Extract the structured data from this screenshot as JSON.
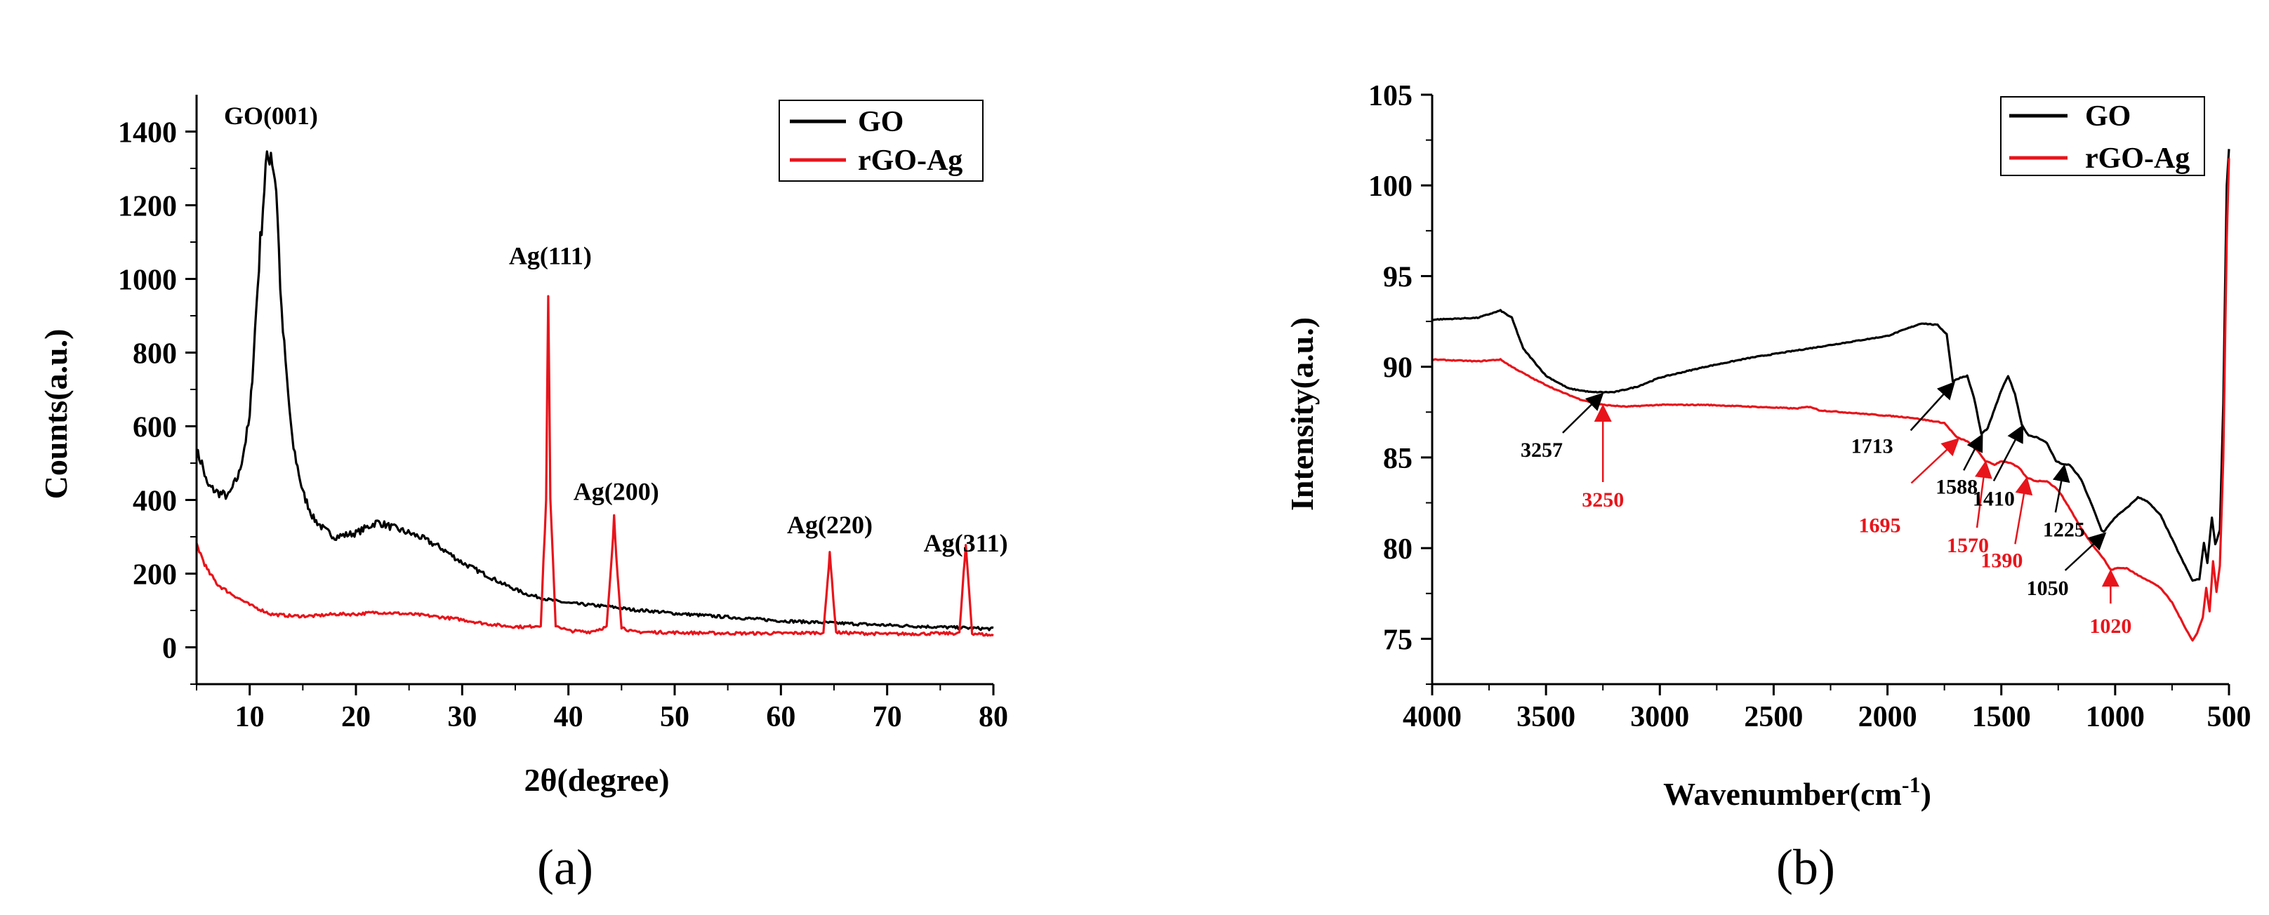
{
  "chart_data": [
    {
      "type": "line",
      "xlabel": "2θ(degree)",
      "ylabel": "Counts(a.u.)",
      "xlim": [
        5,
        80
      ],
      "ylim": [
        -100,
        1500
      ],
      "xticks": [
        10,
        20,
        30,
        40,
        50,
        60,
        70,
        80
      ],
      "yticks": [
        0,
        200,
        400,
        600,
        800,
        1000,
        1200,
        1400
      ],
      "caption": "(a)",
      "legend_position": "top-right",
      "series": [
        {
          "name": "GO",
          "color": "#000000",
          "points": [
            [
              5,
              530
            ],
            [
              5.5,
              500
            ],
            [
              6,
              440
            ],
            [
              7,
              420
            ],
            [
              8,
              410
            ],
            [
              9,
              470
            ],
            [
              10,
              620
            ],
            [
              11,
              1100
            ],
            [
              11.5,
              1300
            ],
            [
              12,
              1350
            ],
            [
              12.5,
              1250
            ],
            [
              13,
              900
            ],
            [
              14,
              560
            ],
            [
              15,
              420
            ],
            [
              16,
              350
            ],
            [
              17,
              320
            ],
            [
              18,
              300
            ],
            [
              20,
              310
            ],
            [
              22,
              340
            ],
            [
              24,
              320
            ],
            [
              26,
              300
            ],
            [
              28,
              270
            ],
            [
              30,
              230
            ],
            [
              32,
              200
            ],
            [
              34,
              170
            ],
            [
              36,
              145
            ],
            [
              38,
              130
            ],
            [
              40,
              120
            ],
            [
              42,
              115
            ],
            [
              44,
              110
            ],
            [
              46,
              102
            ],
            [
              48,
              98
            ],
            [
              50,
              92
            ],
            [
              55,
              82
            ],
            [
              60,
              72
            ],
            [
              65,
              66
            ],
            [
              70,
              60
            ],
            [
              75,
              55
            ],
            [
              80,
              50
            ]
          ]
        },
        {
          "name": "rGO-Ag",
          "color": "#e8141b",
          "points": [
            [
              5,
              280
            ],
            [
              6,
              210
            ],
            [
              7,
              170
            ],
            [
              8,
              150
            ],
            [
              10,
              115
            ],
            [
              12,
              90
            ],
            [
              14,
              85
            ],
            [
              16,
              85
            ],
            [
              18,
              90
            ],
            [
              20,
              90
            ],
            [
              22,
              95
            ],
            [
              24,
              92
            ],
            [
              26,
              88
            ],
            [
              28,
              82
            ],
            [
              30,
              75
            ],
            [
              32,
              65
            ],
            [
              34,
              58
            ],
            [
              36,
              55
            ],
            [
              37.4,
              60
            ],
            [
              37.9,
              400
            ],
            [
              38.1,
              975
            ],
            [
              38.3,
              400
            ],
            [
              38.8,
              60
            ],
            [
              40,
              45
            ],
            [
              42,
              42
            ],
            [
              43.6,
              55
            ],
            [
              44.1,
              250
            ],
            [
              44.3,
              350
            ],
            [
              44.5,
              250
            ],
            [
              45,
              55
            ],
            [
              46,
              42
            ],
            [
              50,
              40
            ],
            [
              55,
              38
            ],
            [
              60,
              38
            ],
            [
              64,
              40
            ],
            [
              64.4,
              180
            ],
            [
              64.6,
              260
            ],
            [
              64.8,
              180
            ],
            [
              65.2,
              40
            ],
            [
              70,
              36
            ],
            [
              76.8,
              38
            ],
            [
              77.2,
              200
            ],
            [
              77.4,
              270
            ],
            [
              77.6,
              200
            ],
            [
              78,
              38
            ],
            [
              80,
              32
            ]
          ]
        }
      ],
      "annotations": [
        {
          "text": "GO(001)",
          "x": 12,
          "y": 1420
        },
        {
          "text": "Ag(111)",
          "x": 38.3,
          "y": 1040
        },
        {
          "text": "Ag(200)",
          "x": 44.5,
          "y": 400
        },
        {
          "text": "Ag(220)",
          "x": 64.6,
          "y": 310
        },
        {
          "text": "Ag(311)",
          "x": 77.4,
          "y": 260
        }
      ]
    },
    {
      "type": "line",
      "xlabel_main": "Wavenumber(cm",
      "xlabel_sup": "-1",
      "xlabel_end": ")",
      "ylabel": "Intensity(a.u.)",
      "xlim": [
        4000,
        500
      ],
      "ylim": [
        72.5,
        105
      ],
      "xticks": [
        4000,
        3500,
        3000,
        2500,
        2000,
        1500,
        1000,
        500
      ],
      "yticks": [
        75,
        80,
        85,
        90,
        95,
        100,
        105
      ],
      "caption": "(b)",
      "legend_position": "top-right",
      "series": [
        {
          "name": "GO",
          "color": "#000000",
          "points": [
            [
              4000,
              92.6
            ],
            [
              3800,
              92.7
            ],
            [
              3700,
              93.1
            ],
            [
              3650,
              92.7
            ],
            [
              3600,
              91.0
            ],
            [
              3500,
              89.5
            ],
            [
              3400,
              88.8
            ],
            [
              3300,
              88.6
            ],
            [
              3200,
              88.6
            ],
            [
              3100,
              88.9
            ],
            [
              3000,
              89.4
            ],
            [
              2900,
              89.7
            ],
            [
              2800,
              90.0
            ],
            [
              2600,
              90.5
            ],
            [
              2400,
              90.9
            ],
            [
              2200,
              91.3
            ],
            [
              2000,
              91.7
            ],
            [
              1850,
              92.4
            ],
            [
              1780,
              92.3
            ],
            [
              1740,
              91.8
            ],
            [
              1713,
              89.2
            ],
            [
              1680,
              89.4
            ],
            [
              1650,
              89.5
            ],
            [
              1620,
              88.3
            ],
            [
              1588,
              86.3
            ],
            [
              1560,
              86.6
            ],
            [
              1500,
              88.7
            ],
            [
              1470,
              89.5
            ],
            [
              1440,
              88.5
            ],
            [
              1410,
              86.8
            ],
            [
              1380,
              86.2
            ],
            [
              1340,
              86.1
            ],
            [
              1300,
              85.8
            ],
            [
              1260,
              84.8
            ],
            [
              1225,
              84.6
            ],
            [
              1200,
              84.6
            ],
            [
              1150,
              83.8
            ],
            [
              1100,
              82.3
            ],
            [
              1060,
              81.0
            ],
            [
              1050,
              80.9
            ],
            [
              1000,
              81.7
            ],
            [
              950,
              82.2
            ],
            [
              900,
              82.8
            ],
            [
              860,
              82.6
            ],
            [
              800,
              81.8
            ],
            [
              750,
              80.5
            ],
            [
              700,
              79.2
            ],
            [
              660,
              78.2
            ],
            [
              630,
              78.3
            ],
            [
              610,
              80.3
            ],
            [
              595,
              79.2
            ],
            [
              575,
              81.7
            ],
            [
              560,
              80.2
            ],
            [
              540,
              81.0
            ],
            [
              525,
              88
            ],
            [
              510,
              100
            ],
            [
              500,
              102
            ]
          ]
        },
        {
          "name": "rGO-Ag",
          "color": "#e8141b",
          "points": [
            [
              4000,
              90.4
            ],
            [
              3800,
              90.3
            ],
            [
              3700,
              90.4
            ],
            [
              3650,
              90.0
            ],
            [
              3550,
              89.3
            ],
            [
              3450,
              88.7
            ],
            [
              3350,
              88.2
            ],
            [
              3250,
              87.9
            ],
            [
              3150,
              87.8
            ],
            [
              3000,
              87.9
            ],
            [
              2800,
              87.9
            ],
            [
              2600,
              87.8
            ],
            [
              2400,
              87.7
            ],
            [
              2340,
              87.8
            ],
            [
              2300,
              87.6
            ],
            [
              2100,
              87.4
            ],
            [
              1900,
              87.2
            ],
            [
              1750,
              86.9
            ],
            [
              1695,
              86.1
            ],
            [
              1650,
              85.9
            ],
            [
              1600,
              85.3
            ],
            [
              1570,
              84.8
            ],
            [
              1530,
              84.6
            ],
            [
              1500,
              84.8
            ],
            [
              1460,
              84.7
            ],
            [
              1420,
              84.4
            ],
            [
              1390,
              83.9
            ],
            [
              1350,
              83.7
            ],
            [
              1300,
              83.7
            ],
            [
              1250,
              83.2
            ],
            [
              1200,
              82.2
            ],
            [
              1150,
              81.1
            ],
            [
              1100,
              80.2
            ],
            [
              1050,
              79.4
            ],
            [
              1020,
              78.8
            ],
            [
              990,
              78.9
            ],
            [
              950,
              78.9
            ],
            [
              900,
              78.5
            ],
            [
              850,
              78.2
            ],
            [
              800,
              77.8
            ],
            [
              750,
              77.0
            ],
            [
              700,
              75.8
            ],
            [
              660,
              74.9
            ],
            [
              640,
              75.3
            ],
            [
              615,
              76.2
            ],
            [
              600,
              77.8
            ],
            [
              585,
              76.5
            ],
            [
              570,
              79.3
            ],
            [
              555,
              77.6
            ],
            [
              540,
              79.0
            ],
            [
              525,
              85
            ],
            [
              510,
              97
            ],
            [
              500,
              101.5
            ]
          ]
        }
      ],
      "annotations": [
        {
          "text": "3257",
          "x": 3257,
          "color": "#000000"
        },
        {
          "text": "3250",
          "x": 3250,
          "color": "#e8141b"
        },
        {
          "text": "1713",
          "x": 1713,
          "color": "#000000"
        },
        {
          "text": "1695",
          "x": 1695,
          "color": "#e8141b"
        },
        {
          "text": "1588",
          "x": 1588,
          "color": "#000000"
        },
        {
          "text": "1570",
          "x": 1570,
          "color": "#e8141b"
        },
        {
          "text": "1410",
          "x": 1410,
          "color": "#000000"
        },
        {
          "text": "1390",
          "x": 1390,
          "color": "#e8141b"
        },
        {
          "text": "1225",
          "x": 1225,
          "color": "#000000"
        },
        {
          "text": "1050",
          "x": 1050,
          "color": "#000000"
        },
        {
          "text": "1020",
          "x": 1020,
          "color": "#e8141b"
        }
      ]
    }
  ]
}
